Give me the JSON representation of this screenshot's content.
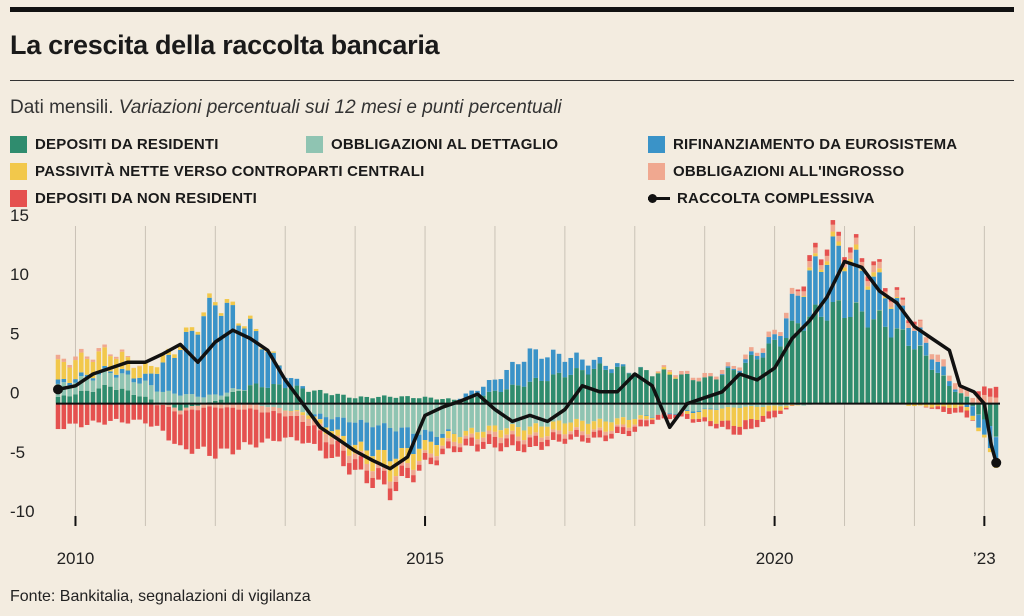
{
  "header": {
    "title": "La crescita della raccolta bancaria",
    "subtitle_plain": "Dati mensili. ",
    "subtitle_italic": "Variazioni percentuali sui 12 mesi e punti percentuali"
  },
  "legend": [
    {
      "key": "dep_res",
      "label": "DEPOSITI DA RESIDENTI",
      "color": "#2f8c6e"
    },
    {
      "key": "obb_det",
      "label": "OBBLIGAZIONI AL DETTAGLIO",
      "color": "#8fc4b2"
    },
    {
      "key": "rif_euro",
      "label": "RIFINANZIAMENTO DA EUROSISTEMA",
      "color": "#3a93c8"
    },
    {
      "key": "pass_ctp",
      "label": "PASSIVITÀ NETTE VERSO CONTROPARTI CENTRALI",
      "color": "#f2c84b"
    },
    {
      "key": "obb_ingr",
      "label": "OBBLIGAZIONI ALL'INGROSSO",
      "color": "#f0a890"
    },
    {
      "key": "dep_nonres",
      "label": "DEPOSITI DA NON RESIDENTI",
      "color": "#e5514f"
    },
    {
      "key": "total",
      "label": "RACCOLTA COMPLESSIVA",
      "color": "#111111"
    }
  ],
  "source": "Fonte: Bankitalia, segnalazioni di vigilanza",
  "chart_data": {
    "type": "bar",
    "stacked": true,
    "x_unit": "month",
    "x_start": "2009-10",
    "x_end": "2023-03",
    "ylim": [
      -10,
      15
    ],
    "yticks": [
      15,
      10,
      5,
      0,
      -5,
      -10
    ],
    "ytick_labels": [
      "15",
      "10",
      "5",
      "0",
      "-5",
      "-10"
    ],
    "xtick_labels": [
      {
        "year": 2010,
        "label": "2010"
      },
      {
        "year": 2015,
        "label": "2015"
      },
      {
        "year": 2020,
        "label": "2020"
      },
      {
        "year": 2023,
        "label": "’23"
      }
    ],
    "grid": "vertical-yearly",
    "series_order": [
      "dep_res",
      "obb_det",
      "rif_euro",
      "pass_ctp",
      "obb_ingr",
      "dep_nonres"
    ],
    "anchors": {
      "dep_res": [
        [
          2009.75,
          0.5
        ],
        [
          2010.5,
          1.5
        ],
        [
          2011,
          0.5
        ],
        [
          2011.5,
          -0.5
        ],
        [
          2012,
          0.2
        ],
        [
          2012.5,
          1.5
        ],
        [
          2013,
          1.5
        ],
        [
          2013.5,
          1.0
        ],
        [
          2014,
          0.5
        ],
        [
          2014.5,
          0.6
        ],
        [
          2015,
          0.5
        ],
        [
          2015.5,
          0.3
        ],
        [
          2016,
          1.0
        ],
        [
          2016.5,
          1.8
        ],
        [
          2017,
          2.5
        ],
        [
          2017.5,
          3.0
        ],
        [
          2018,
          2.8
        ],
        [
          2018.5,
          2.5
        ],
        [
          2019,
          2.0
        ],
        [
          2019.5,
          3.0
        ],
        [
          2020,
          5.0
        ],
        [
          2020.4,
          7.0
        ],
        [
          2020.8,
          8.0
        ],
        [
          2021,
          8.0
        ],
        [
          2021.5,
          7.0
        ],
        [
          2022,
          5.0
        ],
        [
          2022.5,
          1.5
        ],
        [
          2022.75,
          0.5
        ],
        [
          2023,
          -1.5
        ],
        [
          2023.15,
          -2.5
        ]
      ],
      "obb_det": [
        [
          2009.75,
          1.0
        ],
        [
          2010.5,
          1.2
        ],
        [
          2011,
          1.2
        ],
        [
          2011.5,
          0.8
        ],
        [
          2012,
          0.5
        ],
        [
          2012.5,
          0.0
        ],
        [
          2013,
          -0.5
        ],
        [
          2013.5,
          -1.0
        ],
        [
          2014,
          -1.5
        ],
        [
          2014.5,
          -2.0
        ],
        [
          2015,
          -2.5
        ],
        [
          2015.5,
          -2.5
        ],
        [
          2016,
          -2.0
        ],
        [
          2016.5,
          -2.0
        ],
        [
          2017,
          -1.5
        ],
        [
          2017.5,
          -1.5
        ],
        [
          2018,
          -1.2
        ],
        [
          2018.5,
          -0.8
        ],
        [
          2019,
          -0.5
        ],
        [
          2019.5,
          -0.3
        ],
        [
          2020,
          -0.2
        ],
        [
          2021,
          0.0
        ],
        [
          2023.15,
          0.0
        ]
      ],
      "rif_euro": [
        [
          2009.75,
          0.3
        ],
        [
          2010.5,
          0.2
        ],
        [
          2011,
          0.5
        ],
        [
          2011.5,
          4.0
        ],
        [
          2012,
          8.0
        ],
        [
          2012.5,
          5.0
        ],
        [
          2013,
          1.0
        ],
        [
          2013.5,
          -0.5
        ],
        [
          2014,
          -2.0
        ],
        [
          2014.5,
          -2.5
        ],
        [
          2015,
          -1.0
        ],
        [
          2015.5,
          0.2
        ],
        [
          2016,
          1.0
        ],
        [
          2016.5,
          2.5
        ],
        [
          2017,
          1.5
        ],
        [
          2017.5,
          0.5
        ],
        [
          2018,
          0.0
        ],
        [
          2019,
          -0.1
        ],
        [
          2019.5,
          0.2
        ],
        [
          2020,
          0.5
        ],
        [
          2020.4,
          3.0
        ],
        [
          2020.8,
          5.0
        ],
        [
          2021,
          4.5
        ],
        [
          2021.5,
          3.0
        ],
        [
          2022,
          1.5
        ],
        [
          2022.5,
          0.5
        ],
        [
          2022.75,
          -0.3
        ],
        [
          2023,
          -1.5
        ],
        [
          2023.15,
          -2.0
        ]
      ],
      "pass_ctp": [
        [
          2009.75,
          1.5
        ],
        [
          2010.5,
          1.5
        ],
        [
          2011,
          0.8
        ],
        [
          2011.5,
          0.3
        ],
        [
          2012,
          0.3
        ],
        [
          2012.5,
          0.2
        ],
        [
          2013,
          0.0
        ],
        [
          2014,
          -0.8
        ],
        [
          2014.5,
          -1.5
        ],
        [
          2015,
          -1.0
        ],
        [
          2015.5,
          -0.5
        ],
        [
          2016,
          -0.5
        ],
        [
          2016.5,
          -0.8
        ],
        [
          2017,
          -0.8
        ],
        [
          2017.5,
          -0.8
        ],
        [
          2018,
          -0.5
        ],
        [
          2018.5,
          0.3
        ],
        [
          2019,
          -0.8
        ],
        [
          2019.5,
          -1.5
        ],
        [
          2020,
          -0.4
        ],
        [
          2020.5,
          0.2
        ],
        [
          2021,
          0.4
        ],
        [
          2021.5,
          0.3
        ],
        [
          2022,
          -0.2
        ],
        [
          2022.5,
          -0.3
        ],
        [
          2023,
          -0.3
        ],
        [
          2023.15,
          -0.3
        ]
      ],
      "obb_ingr": [
        [
          2009.75,
          0.3
        ],
        [
          2010.5,
          0.2
        ],
        [
          2011,
          0.0
        ],
        [
          2011.5,
          -0.3
        ],
        [
          2012,
          -0.3
        ],
        [
          2012.5,
          -0.5
        ],
        [
          2013,
          -0.4
        ],
        [
          2013.5,
          -0.6
        ],
        [
          2014,
          -0.5
        ],
        [
          2014.5,
          -0.5
        ],
        [
          2015,
          -0.3
        ],
        [
          2015.5,
          -0.3
        ],
        [
          2016,
          -0.4
        ],
        [
          2016.5,
          -0.3
        ],
        [
          2017,
          -0.3
        ],
        [
          2018,
          -0.2
        ],
        [
          2018.5,
          0.2
        ],
        [
          2019,
          0.3
        ],
        [
          2019.5,
          0.3
        ],
        [
          2020,
          0.4
        ],
        [
          2021,
          0.5
        ],
        [
          2022,
          0.5
        ],
        [
          2023,
          0.6
        ],
        [
          2023.15,
          0.6
        ]
      ],
      "dep_nonres": [
        [
          2009.75,
          -2.0
        ],
        [
          2010.5,
          -1.5
        ],
        [
          2011,
          -1.5
        ],
        [
          2011.5,
          -3.0
        ],
        [
          2012,
          -4.0
        ],
        [
          2012.5,
          -3.0
        ],
        [
          2013,
          -2.0
        ],
        [
          2013.5,
          -1.5
        ],
        [
          2014,
          -1.0
        ],
        [
          2014.5,
          -1.0
        ],
        [
          2015,
          -0.5
        ],
        [
          2015.5,
          -0.5
        ],
        [
          2016,
          -0.8
        ],
        [
          2016.5,
          -0.8
        ],
        [
          2017,
          -0.5
        ],
        [
          2017.5,
          -0.5
        ],
        [
          2018,
          -0.5
        ],
        [
          2019,
          -0.3
        ],
        [
          2019.5,
          -0.8
        ],
        [
          2020,
          -0.5
        ],
        [
          2020.5,
          0.5
        ],
        [
          2021,
          0.4
        ],
        [
          2021.5,
          0.3
        ],
        [
          2022,
          0.2
        ],
        [
          2022.5,
          -0.5
        ],
        [
          2022.75,
          -0.5
        ],
        [
          2023,
          0.8
        ],
        [
          2023.15,
          0.8
        ]
      ]
    },
    "total_line": [
      [
        2009.75,
        1.2
      ],
      [
        2010,
        1.5
      ],
      [
        2010.25,
        2.5
      ],
      [
        2010.5,
        3.0
      ],
      [
        2010.75,
        3.5
      ],
      [
        2011,
        3.5
      ],
      [
        2011.25,
        4.2
      ],
      [
        2011.5,
        5.0
      ],
      [
        2011.75,
        3.5
      ],
      [
        2012,
        5.2
      ],
      [
        2012.25,
        6.2
      ],
      [
        2012.5,
        5.5
      ],
      [
        2012.75,
        4.5
      ],
      [
        2013,
        2.0
      ],
      [
        2013.25,
        0.0
      ],
      [
        2013.5,
        -2.0
      ],
      [
        2013.75,
        -3.0
      ],
      [
        2014,
        -4.0
      ],
      [
        2014.25,
        -4.8
      ],
      [
        2014.5,
        -5.5
      ],
      [
        2014.75,
        -4.5
      ],
      [
        2015,
        -1.0
      ],
      [
        2015.25,
        -0.3
      ],
      [
        2015.5,
        0.2
      ],
      [
        2015.75,
        0.8
      ],
      [
        2016,
        -0.5
      ],
      [
        2016.25,
        -1.5
      ],
      [
        2016.5,
        -1.0
      ],
      [
        2016.75,
        -1.5
      ],
      [
        2017,
        -0.5
      ],
      [
        2017.25,
        1.5
      ],
      [
        2017.5,
        1.0
      ],
      [
        2017.75,
        1.0
      ],
      [
        2018,
        2.5
      ],
      [
        2018.25,
        1.5
      ],
      [
        2018.5,
        -2.0
      ],
      [
        2018.75,
        0.0
      ],
      [
        2019,
        0.5
      ],
      [
        2019.25,
        1.0
      ],
      [
        2019.5,
        2.5
      ],
      [
        2019.75,
        2.0
      ],
      [
        2020,
        3.0
      ],
      [
        2020.25,
        5.5
      ],
      [
        2020.5,
        7.0
      ],
      [
        2020.75,
        9.0
      ],
      [
        2021,
        12.0
      ],
      [
        2021.25,
        11.5
      ],
      [
        2021.5,
        9.5
      ],
      [
        2021.75,
        8.5
      ],
      [
        2022,
        6.5
      ],
      [
        2022.25,
        5.5
      ],
      [
        2022.5,
        4.5
      ],
      [
        2022.65,
        1.5
      ],
      [
        2022.85,
        1.0
      ],
      [
        2023,
        0.0
      ],
      [
        2023.1,
        -3.5
      ],
      [
        2023.17,
        -5.0
      ]
    ]
  }
}
